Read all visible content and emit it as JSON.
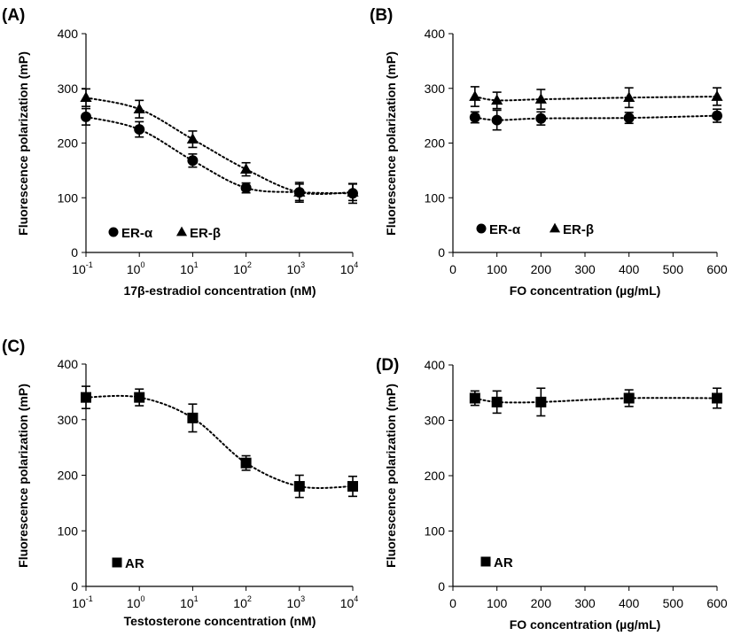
{
  "chart_data": [
    {
      "panel": "(A)",
      "type": "scatter",
      "xlabel": "17β-estradiol concentration (nM)",
      "ylabel": "Fluorescence polarization (mP)",
      "xscale": "log",
      "xlim": [
        0.1,
        10000
      ],
      "ylim": [
        0,
        400
      ],
      "xticks": [
        {
          "base": "10",
          "exp": "-1"
        },
        {
          "base": "10",
          "exp": "0"
        },
        {
          "base": "10",
          "exp": "1"
        },
        {
          "base": "10",
          "exp": "2"
        },
        {
          "base": "10",
          "exp": "3"
        },
        {
          "base": "10",
          "exp": "4"
        }
      ],
      "yticks": [
        "0",
        "100",
        "200",
        "300",
        "400"
      ],
      "legend_position": "bottom-left",
      "trendline": "dotted",
      "series": [
        {
          "name": "ER-α",
          "marker": "circle",
          "x": [
            0.1,
            1,
            10,
            100,
            1000,
            10000
          ],
          "y": [
            248,
            225,
            168,
            118,
            110,
            108
          ],
          "err": [
            15,
            14,
            12,
            9,
            18,
            18
          ]
        },
        {
          "name": "ER-β",
          "marker": "triangle",
          "x": [
            0.1,
            1,
            10,
            100,
            1000,
            10000
          ],
          "y": [
            283,
            262,
            207,
            152,
            110,
            110
          ],
          "err": [
            16,
            16,
            15,
            12,
            15,
            15
          ]
        }
      ]
    },
    {
      "panel": "(B)",
      "type": "scatter",
      "xlabel": "FO concentration (µg/mL)",
      "ylabel": "Fluorescence polarization (mP)",
      "xscale": "linear",
      "xlim": [
        0,
        600
      ],
      "ylim": [
        0,
        400
      ],
      "xticks": [
        "0",
        "100",
        "200",
        "300",
        "400",
        "500",
        "600"
      ],
      "yticks": [
        "0",
        "100",
        "200",
        "300",
        "400"
      ],
      "legend_position": "bottom-left",
      "trendline": "dotted",
      "series": [
        {
          "name": "ER-α",
          "marker": "circle",
          "x": [
            50,
            100,
            200,
            400,
            600
          ],
          "y": [
            247,
            242,
            245,
            246,
            250
          ],
          "err": [
            10,
            18,
            12,
            10,
            12
          ]
        },
        {
          "name": "ER-β",
          "marker": "triangle",
          "x": [
            50,
            100,
            200,
            400,
            600
          ],
          "y": [
            285,
            278,
            280,
            283,
            285
          ],
          "err": [
            18,
            15,
            18,
            18,
            16
          ]
        }
      ]
    },
    {
      "panel": "(C)",
      "type": "scatter",
      "xlabel": "Testosterone concentration (nM)",
      "ylabel": "Fluorescence polarization (mP)",
      "xscale": "log",
      "xlim": [
        0.1,
        10000
      ],
      "ylim": [
        0,
        400
      ],
      "xticks": [
        {
          "base": "10",
          "exp": "-1"
        },
        {
          "base": "10",
          "exp": "0"
        },
        {
          "base": "10",
          "exp": "1"
        },
        {
          "base": "10",
          "exp": "2"
        },
        {
          "base": "10",
          "exp": "3"
        },
        {
          "base": "10",
          "exp": "4"
        }
      ],
      "yticks": [
        "0",
        "100",
        "200",
        "300",
        "400"
      ],
      "legend_position": "bottom-left",
      "trendline": "dotted",
      "series": [
        {
          "name": "AR",
          "marker": "square",
          "x": [
            0.1,
            1,
            10,
            100,
            1000,
            10000
          ],
          "y": [
            340,
            340,
            303,
            222,
            180,
            180
          ],
          "err": [
            20,
            15,
            25,
            13,
            20,
            18
          ]
        }
      ]
    },
    {
      "panel": "(D)",
      "type": "scatter",
      "xlabel": "FO concentration (µg/mL)",
      "ylabel": "Fluorescence polarization (mP)",
      "xscale": "linear",
      "xlim": [
        0,
        600
      ],
      "ylim": [
        0,
        400
      ],
      "xticks": [
        "0",
        "100",
        "200",
        "300",
        "400",
        "500",
        "600"
      ],
      "yticks": [
        "0",
        "100",
        "200",
        "300",
        "400"
      ],
      "legend_position": "bottom-left",
      "trendline": "dotted",
      "series": [
        {
          "name": "AR",
          "marker": "square",
          "x": [
            50,
            100,
            200,
            400,
            600
          ],
          "y": [
            340,
            333,
            333,
            340,
            340
          ],
          "err": [
            13,
            20,
            25,
            15,
            18
          ]
        }
      ]
    }
  ]
}
